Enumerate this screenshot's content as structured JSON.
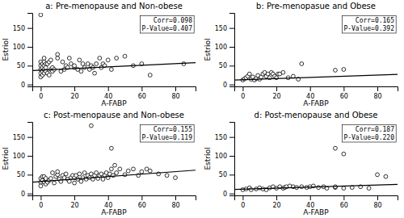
{
  "chart_data": [
    {
      "type": "scatter",
      "title": "a: Pre-menopause and Non-obese",
      "x_label": "A-FABP",
      "y_label": "Estriol",
      "annotations": [
        "Corr=0.098",
        "P-Value=0.407"
      ],
      "xlim": [
        -5,
        92
      ],
      "ylim": [
        -5,
        190
      ],
      "xticks": [
        0,
        20,
        40,
        60,
        80
      ],
      "yticks": [
        0,
        50,
        100,
        150
      ],
      "series": [
        {
          "type": "scatter",
          "marker": "hollow-circle",
          "color": "black",
          "x": [
            0,
            0,
            0,
            0,
            0,
            1,
            1,
            1,
            1,
            2,
            2,
            2,
            2,
            2,
            3,
            3,
            3,
            4,
            4,
            5,
            5,
            6,
            6,
            7,
            7,
            8,
            10,
            10,
            12,
            13,
            14,
            15,
            16,
            17,
            18,
            20,
            20,
            22,
            23,
            24,
            25,
            26,
            28,
            29,
            30,
            31,
            32,
            33,
            35,
            36,
            37,
            38,
            40,
            42,
            45,
            50,
            55,
            60,
            65,
            85,
            0
          ],
          "values": [
            20,
            30,
            40,
            50,
            60,
            25,
            35,
            45,
            55,
            30,
            40,
            50,
            60,
            70,
            35,
            45,
            55,
            30,
            55,
            25,
            60,
            40,
            65,
            35,
            45,
            40,
            70,
            80,
            35,
            60,
            40,
            50,
            45,
            70,
            55,
            45,
            50,
            40,
            65,
            35,
            55,
            45,
            55,
            40,
            50,
            45,
            30,
            55,
            70,
            45,
            55,
            50,
            65,
            40,
            70,
            75,
            50,
            55,
            25,
            55,
            185
          ]
        },
        {
          "type": "line",
          "color": "black",
          "x": [
            -5,
            92
          ],
          "values": [
            37,
            58
          ]
        }
      ]
    },
    {
      "type": "scatter",
      "title": "b: Pre-menopasue and Obese",
      "x_label": "A-FABP",
      "y_label": "Estriol",
      "annotations": [
        "Corr=0.165",
        "P-Value=0.392"
      ],
      "xlim": [
        -5,
        92
      ],
      "ylim": [
        -5,
        190
      ],
      "xticks": [
        0,
        20,
        40,
        60,
        80
      ],
      "yticks": [
        0,
        50,
        100,
        150
      ],
      "series": [
        {
          "type": "scatter",
          "marker": "hollow-circle",
          "color": "black",
          "x": [
            0,
            1,
            2,
            3,
            4,
            5,
            6,
            7,
            8,
            9,
            10,
            11,
            12,
            13,
            14,
            15,
            16,
            17,
            18,
            19,
            20,
            21,
            22,
            24,
            27,
            30,
            33,
            35,
            55,
            60
          ],
          "values": [
            12,
            15,
            18,
            22,
            28,
            14,
            20,
            12,
            16,
            24,
            14,
            20,
            28,
            32,
            22,
            28,
            18,
            32,
            28,
            22,
            18,
            28,
            28,
            32,
            18,
            22,
            14,
            55,
            38,
            40
          ]
        },
        {
          "type": "line",
          "color": "black",
          "x": [
            -5,
            92
          ],
          "values": [
            12,
            27
          ]
        }
      ]
    },
    {
      "type": "scatter",
      "title": "c: Post-menopause and Non-obese",
      "x_label": "A-FABP",
      "y_label": "Estriol",
      "annotations": [
        "Corr=0.155",
        "P-Value=0.119"
      ],
      "xlim": [
        -5,
        92
      ],
      "ylim": [
        -5,
        190
      ],
      "xticks": [
        0,
        20,
        40,
        60,
        80
      ],
      "yticks": [
        0,
        50,
        100,
        150
      ],
      "series": [
        {
          "type": "scatter",
          "marker": "hollow-circle",
          "color": "black",
          "x": [
            0,
            0,
            0,
            1,
            1,
            2,
            2,
            3,
            3,
            4,
            5,
            6,
            7,
            8,
            9,
            10,
            10,
            11,
            12,
            13,
            14,
            15,
            16,
            17,
            18,
            19,
            20,
            20,
            21,
            22,
            23,
            24,
            25,
            26,
            27,
            28,
            29,
            30,
            31,
            32,
            33,
            34,
            35,
            36,
            37,
            38,
            39,
            40,
            41,
            42,
            43,
            44,
            45,
            47,
            50,
            52,
            55,
            58,
            60,
            63,
            65,
            70,
            75,
            80,
            30,
            42
          ],
          "values": [
            30,
            40,
            20,
            35,
            45,
            30,
            45,
            25,
            40,
            30,
            35,
            40,
            55,
            28,
            45,
            50,
            58,
            38,
            32,
            48,
            42,
            52,
            38,
            32,
            42,
            48,
            28,
            42,
            48,
            38,
            52,
            32,
            42,
            55,
            38,
            48,
            42,
            52,
            38,
            48,
            55,
            40,
            48,
            52,
            38,
            48,
            55,
            42,
            52,
            65,
            48,
            75,
            55,
            65,
            50,
            60,
            65,
            48,
            58,
            65,
            60,
            52,
            48,
            42,
            180,
            120
          ]
        },
        {
          "type": "line",
          "color": "black",
          "x": [
            -5,
            92
          ],
          "values": [
            30,
            62
          ]
        }
      ]
    },
    {
      "type": "scatter",
      "title": "d: Post-menopause and Obese",
      "x_label": "A-FABP",
      "y_label": "Estriol",
      "annotations": [
        "Corr=0.187",
        "P-Value=0.220"
      ],
      "xlim": [
        -5,
        92
      ],
      "ylim": [
        -5,
        190
      ],
      "xticks": [
        0,
        20,
        40,
        60,
        80
      ],
      "yticks": [
        0,
        50,
        100,
        150
      ],
      "series": [
        {
          "type": "scatter",
          "marker": "hollow-circle",
          "color": "black",
          "x": [
            0,
            2,
            4,
            5,
            8,
            10,
            12,
            14,
            16,
            18,
            20,
            22,
            24,
            25,
            26,
            28,
            30,
            32,
            35,
            38,
            40,
            42,
            45,
            48,
            50,
            55,
            55,
            60,
            65,
            70,
            75,
            80,
            85,
            55,
            60
          ],
          "values": [
            10,
            12,
            15,
            10,
            12,
            15,
            12,
            10,
            15,
            18,
            14,
            18,
            14,
            16,
            18,
            20,
            18,
            16,
            18,
            16,
            18,
            20,
            16,
            18,
            14,
            16,
            18,
            14,
            16,
            18,
            14,
            50,
            45,
            120,
            105
          ]
        },
        {
          "type": "line",
          "color": "black",
          "x": [
            -5,
            92
          ],
          "values": [
            11,
            24
          ]
        }
      ]
    }
  ]
}
